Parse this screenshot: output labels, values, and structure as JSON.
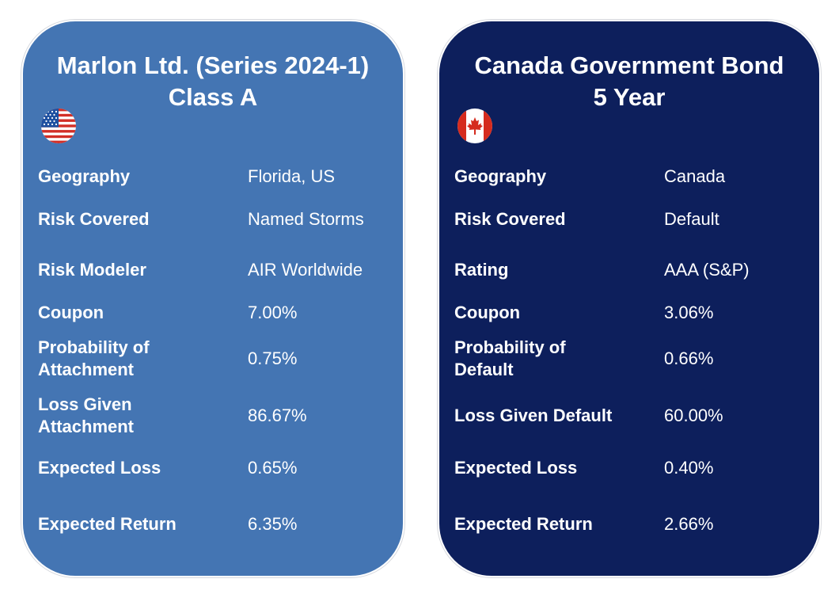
{
  "colors": {
    "left_card_bg": "#4475b3",
    "right_card_bg": "#0d1f5c",
    "text": "#ffffff"
  },
  "cards": [
    {
      "title_line1": "Marlon Ltd. (Series 2024-1)",
      "title_line2": "Class A",
      "flag_icon": "us-flag-icon",
      "rows": [
        {
          "label": "Geography",
          "value": "Florida, US"
        },
        {
          "label": "Risk Covered",
          "value": "Named Storms"
        },
        {
          "label": "Risk Modeler",
          "value": "AIR Worldwide"
        },
        {
          "label": "Coupon",
          "value": "7.00%"
        },
        {
          "label": "Probability of Attachment",
          "value": "0.75%"
        },
        {
          "label": "Loss Given Attachment",
          "value": "86.67%"
        },
        {
          "label": "Expected Loss",
          "value": "0.65%"
        },
        {
          "label": "Expected Return",
          "value": "6.35%"
        }
      ]
    },
    {
      "title_line1": "Canada Government Bond",
      "title_line2": "5 Year",
      "flag_icon": "canada-flag-icon",
      "rows": [
        {
          "label": "Geography",
          "value": "Canada"
        },
        {
          "label": "Risk Covered",
          "value": "Default"
        },
        {
          "label": "Rating",
          "value": "AAA (S&P)"
        },
        {
          "label": "Coupon",
          "value": "3.06%"
        },
        {
          "label": "Probability of Default",
          "value": "0.66%"
        },
        {
          "label": "Loss Given Default",
          "value": "60.00%"
        },
        {
          "label": "Expected Loss",
          "value": "0.40%"
        },
        {
          "label": "Expected Return",
          "value": "2.66%"
        }
      ]
    }
  ]
}
